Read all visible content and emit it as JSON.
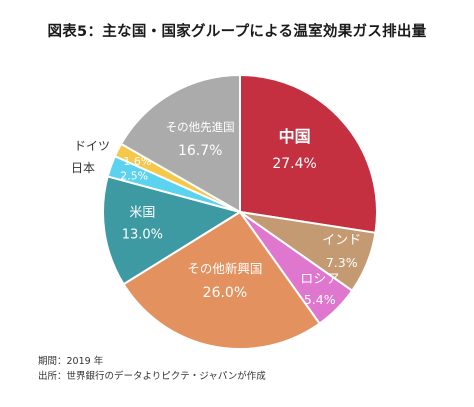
{
  "title": "図表5：主な国・国家グループによる温室効果ガス排出量",
  "footer": {
    "period": "期間：2019 年",
    "source": "出所：世界銀行のデータよりピクテ・ジャパンが作成"
  },
  "chart_data": {
    "type": "pie",
    "title": "図表5：主な国・国家グループによる温室効果ガス排出量",
    "unit": "%",
    "start": "12 o'clock",
    "direction": "clockwise",
    "slices": [
      {
        "label": "中国",
        "value": 27.4,
        "value_text": "27.4%",
        "color": "#c4303f"
      },
      {
        "label": "インド",
        "value": 7.3,
        "value_text": "7.3%",
        "color": "#c49a72"
      },
      {
        "label": "ロシア",
        "value": 5.4,
        "value_text": "5.4%",
        "color": "#e077cf"
      },
      {
        "label": "その他新興国",
        "value": 26.0,
        "value_text": "26.0%",
        "color": "#e2915f"
      },
      {
        "label": "米国",
        "value": 13.0,
        "value_text": "13.0%",
        "color": "#3d9aa3"
      },
      {
        "label": "日本",
        "value": 2.5,
        "value_text": "2.5%",
        "color": "#5cd3ee"
      },
      {
        "label": "ドイツ",
        "value": 1.6,
        "value_text": "1.6%",
        "color": "#f5c84a"
      },
      {
        "label": "その他先進国",
        "value": 16.7,
        "value_text": "16.7%",
        "color": "#ababab"
      }
    ]
  }
}
